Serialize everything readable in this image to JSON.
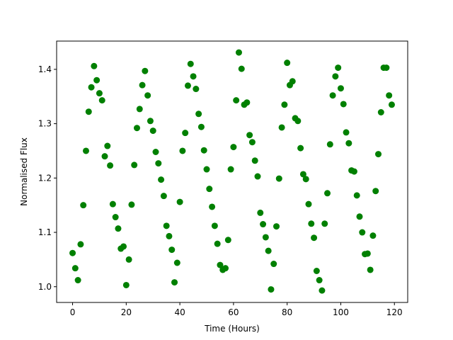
{
  "chart_data": {
    "type": "scatter",
    "x_label": "Time (Hours)",
    "y_label": "Normalised Flux",
    "color": "#008000",
    "x": [
      0,
      1,
      2,
      3,
      4,
      5,
      6,
      7,
      8,
      9,
      10,
      11,
      12,
      13,
      14,
      15,
      16,
      17,
      18,
      19,
      20,
      21,
      22,
      23,
      24,
      25,
      26,
      27,
      28,
      29,
      30,
      31,
      32,
      33,
      34,
      35,
      36,
      37,
      38,
      39,
      40,
      41,
      42,
      43,
      44,
      45,
      46,
      47,
      48,
      49,
      50,
      51,
      52,
      53,
      54,
      55,
      56,
      57,
      58,
      59,
      60,
      61,
      62,
      63,
      64,
      65,
      66,
      67,
      68,
      69,
      70,
      71,
      72,
      73,
      74,
      75,
      76,
      77,
      78,
      79,
      80,
      81,
      82,
      83,
      84,
      85,
      86,
      87,
      88,
      89,
      90,
      91,
      92,
      93,
      94,
      95,
      96,
      97,
      98,
      99,
      100,
      101,
      102,
      103,
      104,
      105,
      106,
      107,
      108,
      109,
      110,
      111,
      112,
      113,
      114,
      115,
      116,
      117,
      118,
      119
    ],
    "values": [
      1.062,
      1.034,
      1.012,
      1.078,
      1.15,
      1.25,
      1.322,
      1.367,
      1.406,
      1.38,
      1.356,
      1.343,
      1.24,
      1.259,
      1.223,
      1.152,
      1.128,
      1.107,
      1.07,
      1.074,
      1.003,
      1.05,
      1.151,
      1.224,
      1.292,
      1.327,
      1.371,
      1.397,
      1.352,
      1.305,
      1.287,
      1.248,
      1.227,
      1.197,
      1.167,
      1.112,
      1.093,
      1.068,
      1.008,
      1.044,
      1.156,
      1.25,
      1.283,
      1.37,
      1.41,
      1.387,
      1.364,
      1.318,
      1.294,
      1.251,
      1.216,
      1.18,
      1.147,
      1.112,
      1.079,
      1.04,
      1.031,
      1.034,
      1.086,
      1.216,
      1.257,
      1.343,
      1.431,
      1.401,
      1.335,
      1.339,
      1.279,
      1.266,
      1.232,
      1.203,
      1.136,
      1.115,
      1.091,
      1.066,
      0.995,
      1.042,
      1.111,
      1.199,
      1.293,
      1.335,
      1.412,
      1.371,
      1.378,
      1.31,
      1.305,
      1.255,
      1.207,
      1.198,
      1.152,
      1.116,
      1.09,
      1.029,
      1.012,
      0.993,
      1.116,
      1.172,
      1.262,
      1.352,
      1.387,
      1.403,
      1.365,
      1.336,
      1.284,
      1.264,
      1.214,
      1.212,
      1.168,
      1.129,
      1.1,
      1.06,
      1.061,
      1.031,
      1.094,
      1.176,
      1.244,
      1.321,
      1.403,
      1.403,
      1.352,
      1.335
    ],
    "xlim": [
      -5.95,
      124.95
    ],
    "xticks": [
      0,
      20,
      40,
      60,
      80,
      100,
      120
    ],
    "ylim": [
      0.971,
      1.452
    ],
    "yticks": [
      {
        "value": 1,
        "label": "1.0"
      },
      1.1,
      1.2,
      1.3,
      1.4
    ]
  }
}
